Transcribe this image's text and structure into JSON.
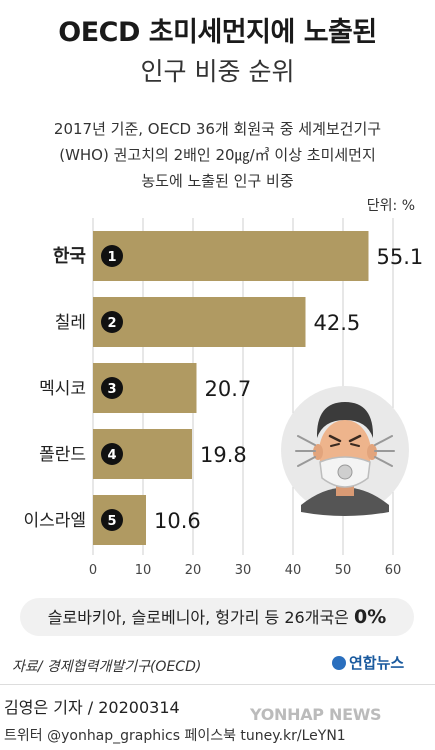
{
  "header": {
    "title_line1": "OECD 초미세먼지에 노출된",
    "title_line2": "인구 비중 순위",
    "subtitle_line1": "2017년 기준, OECD 36개 회원국 중 세계보건기구",
    "subtitle_line2": "(WHO) 권고치의 2배인 20㎍/㎥ 이상 초미세먼지",
    "subtitle_line3": "농도에 노출된 인구 비중",
    "unit": "단위: %"
  },
  "chart_data": {
    "type": "bar",
    "orientation": "horizontal",
    "categories": [
      "한국",
      "칠레",
      "멕시코",
      "폴란드",
      "이스라엘"
    ],
    "ranks": [
      "1",
      "2",
      "3",
      "4",
      "5"
    ],
    "values": [
      55.1,
      42.5,
      20.7,
      19.8,
      10.6
    ],
    "xlim": [
      0,
      60
    ],
    "xticks": [
      0,
      10,
      20,
      30,
      40,
      50,
      60
    ],
    "grid": true,
    "colors": {
      "bar": "#b09a62",
      "gridline": "#cfcfcf",
      "badge": "#111111",
      "background": "#ffffff"
    }
  },
  "note": {
    "text": "슬로바키아, 슬로베니아, 헝가리 등 26개국은 ",
    "value": "0%"
  },
  "footer": {
    "source": "자료/ 경제협력개발기구(OECD)",
    "brand": "연합뉴스",
    "reporter": "김영은 기자 / 20200314",
    "social": "트위터 @yonhap_graphics  페이스북 tuney.kr/LeYN1",
    "wire": "YONHAP NEWS"
  }
}
